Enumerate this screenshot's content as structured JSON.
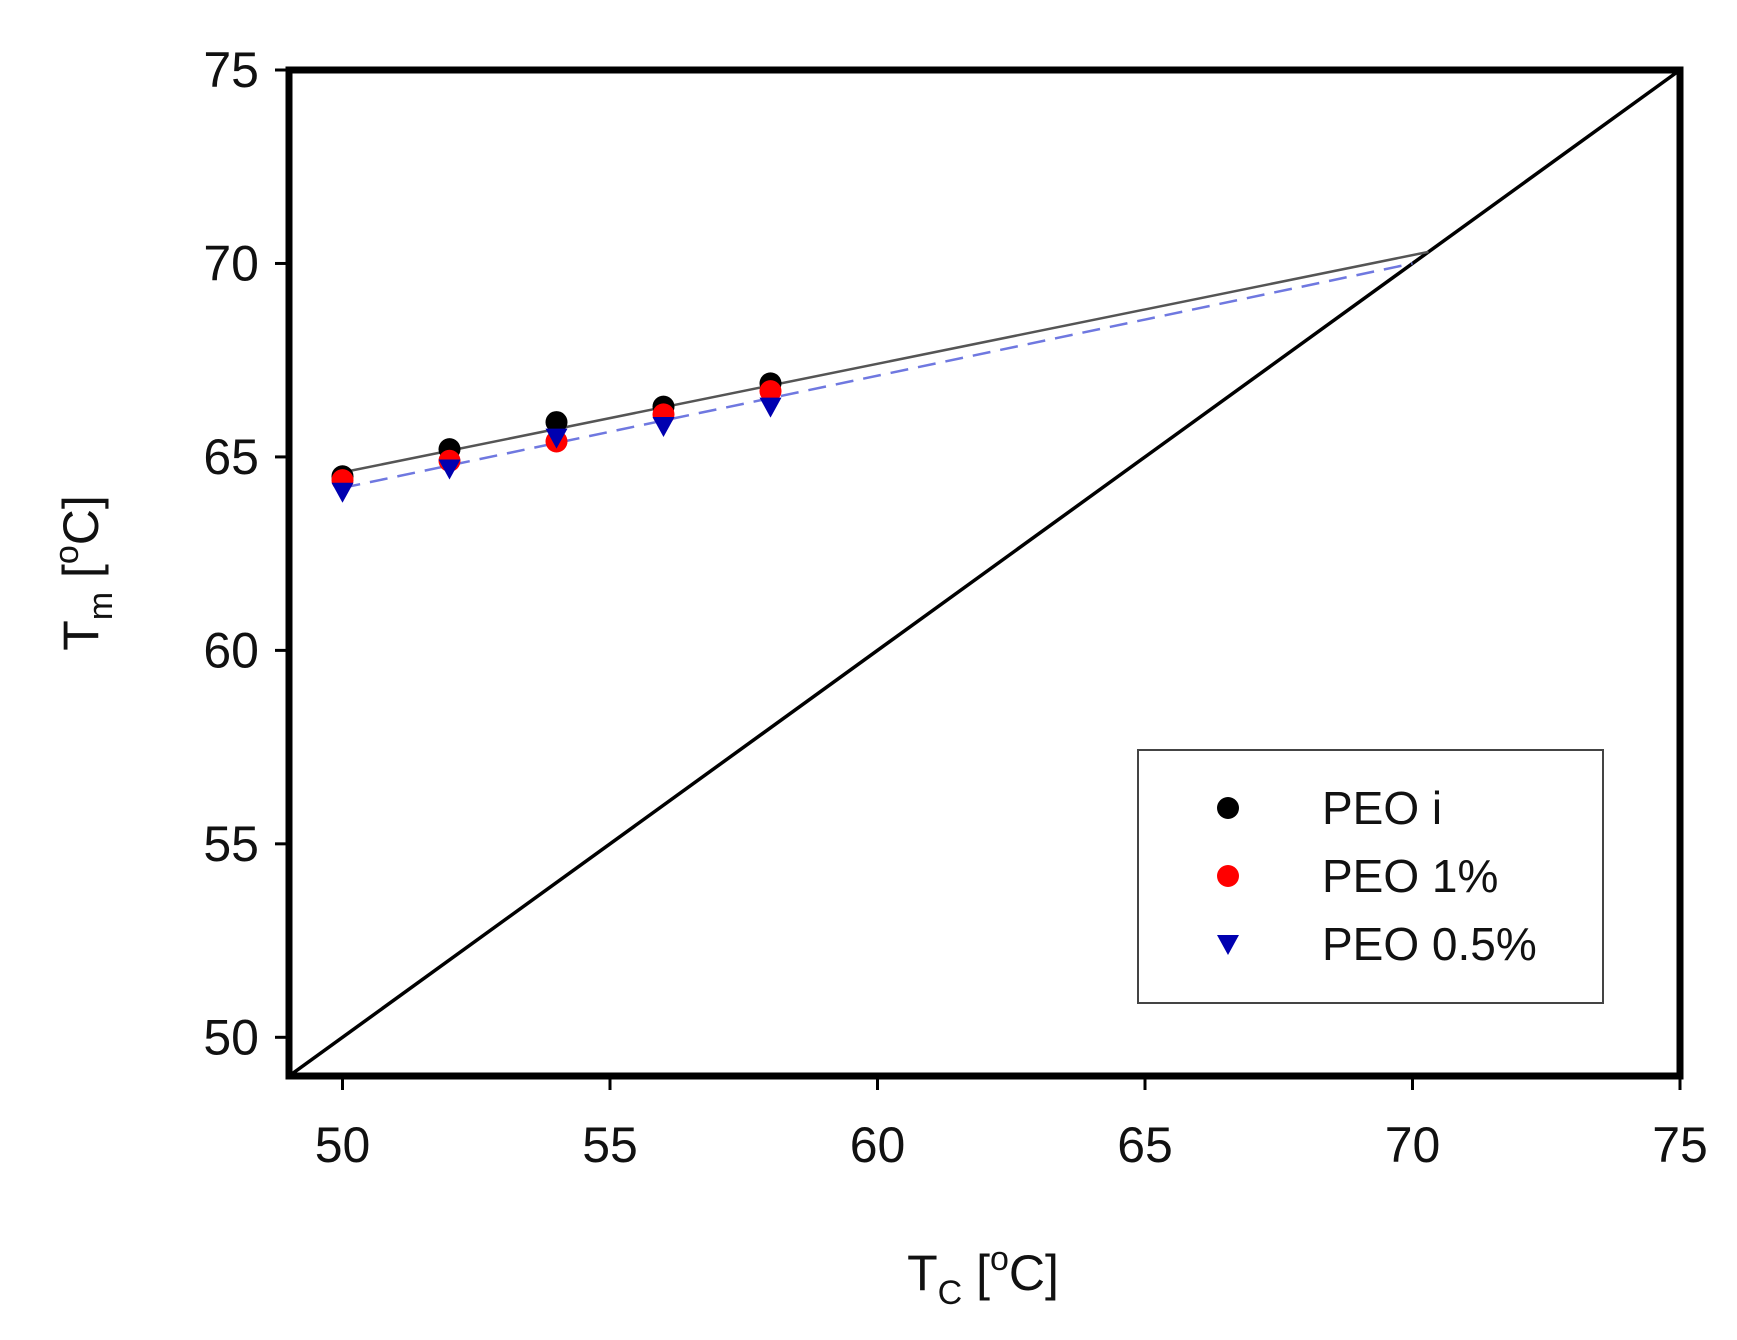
{
  "chart_data": {
    "type": "scatter",
    "title": "",
    "xlabel": {
      "main": "T",
      "sub": "C",
      "unit": " [",
      "sup": "o",
      "unit_end": "C]"
    },
    "ylabel": {
      "main": "T",
      "sub": "m",
      "unit": " [",
      "sup": "o",
      "unit_end": "C]"
    },
    "xlim": [
      49,
      75
    ],
    "ylim": [
      49,
      75
    ],
    "x_ticks": [
      50,
      55,
      60,
      65,
      70,
      75
    ],
    "y_ticks": [
      50,
      55,
      60,
      65,
      70,
      75
    ],
    "grid": false,
    "legend_position": "bottom-right",
    "series": [
      {
        "name": "PEO i",
        "marker": "circle",
        "color": "#000000",
        "x": [
          50,
          52,
          54,
          56,
          58
        ],
        "y": [
          64.5,
          65.2,
          65.9,
          66.3,
          66.9
        ],
        "fit": {
          "x_start": 50,
          "x_end": 70.3,
          "y_start": 64.6,
          "y_end": 70.3,
          "style": "solid",
          "color": "#555555"
        }
      },
      {
        "name": "PEO 1%",
        "marker": "circle",
        "color": "#ff0000",
        "x": [
          50,
          52,
          54,
          56,
          58
        ],
        "y": [
          64.4,
          64.9,
          65.4,
          66.1,
          66.7
        ],
        "fit": null
      },
      {
        "name": "PEO 0.5%",
        "marker": "triangle-down",
        "color": "#0000b0",
        "x": [
          50,
          52,
          54,
          56,
          58
        ],
        "y": [
          64.1,
          64.7,
          65.5,
          65.8,
          66.3
        ],
        "fit": {
          "x_start": 50,
          "x_end": 70.0,
          "y_start": 64.2,
          "y_end": 70.0,
          "style": "dashed",
          "color": "#6f78e0"
        }
      }
    ],
    "reference_line": {
      "name": "Tm = Tc",
      "x": [
        49,
        75
      ],
      "y": [
        49,
        75
      ],
      "color": "#000000"
    }
  }
}
